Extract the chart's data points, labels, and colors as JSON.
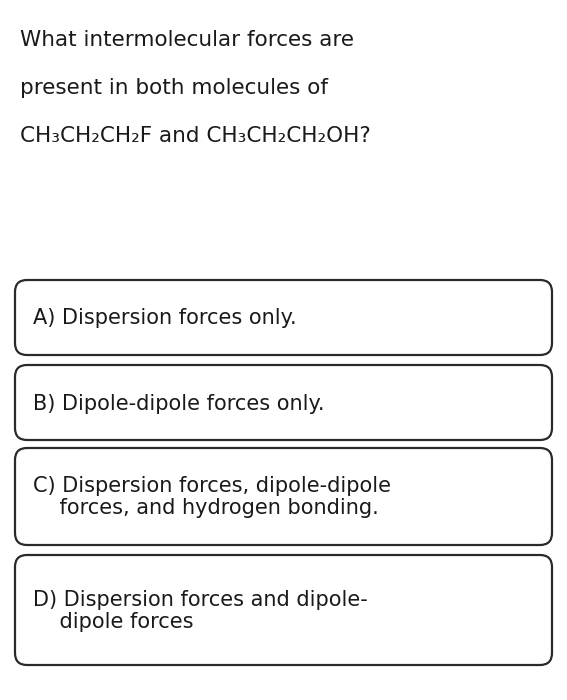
{
  "background_color": "#ffffff",
  "question_lines": [
    "What intermolecular forces are",
    "present in both molecules of",
    "CH₃CH₂CH₂F and CH₃CH₂CH₂OH?"
  ],
  "option_texts": [
    [
      "A) Dispersion forces only."
    ],
    [
      "B) Dipole-dipole forces only."
    ],
    [
      "C) Dispersion forces, dipole-dipole",
      "    forces, and hydrogen bonding."
    ],
    [
      "D) Dispersion forces and dipole-",
      "    dipole forces"
    ]
  ],
  "text_color": "#1a1a1a",
  "box_edge_color": "#2a2a2a",
  "box_face_color": "#ffffff",
  "question_fontsize": 15.5,
  "option_fontsize": 15.0,
  "fig_width": 5.67,
  "fig_height": 7.0,
  "dpi": 100
}
